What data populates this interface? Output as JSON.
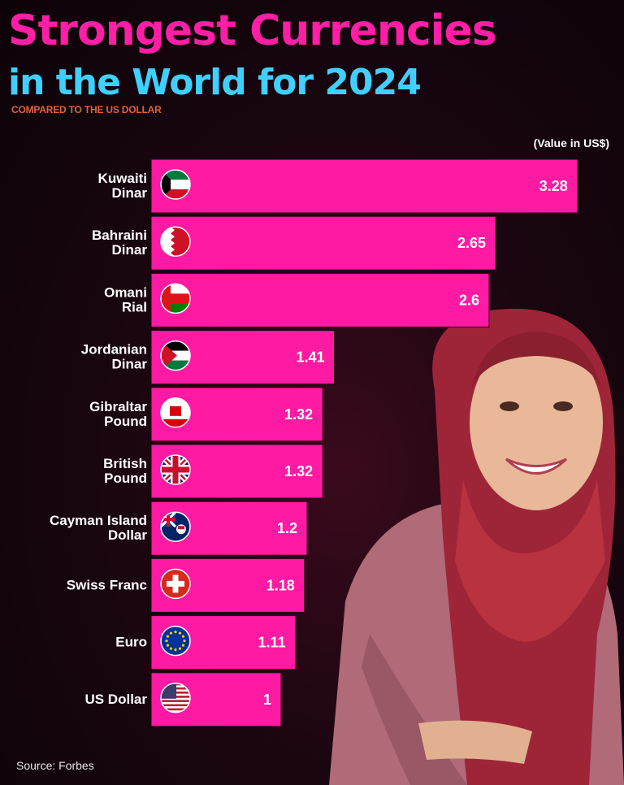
{
  "header": {
    "title_line1": "Strongest Currencies",
    "title_line2": "in the World for 2024",
    "subtitle": "COMPARED TO THE US DOLLAR",
    "unit_note": "(Value in US$)"
  },
  "footer": {
    "source": "Source: Forbes"
  },
  "chart_data": {
    "type": "bar",
    "orientation": "horizontal",
    "title": "Strongest Currencies in the World for 2024",
    "subtitle": "COMPARED TO THE US DOLLAR",
    "unit": "(Value in US$)",
    "categories": [
      [
        "Kuwaiti",
        "Dinar"
      ],
      [
        "Bahraini",
        "Dinar"
      ],
      [
        "Omani",
        "Rial"
      ],
      [
        "Jordanian",
        "Dinar"
      ],
      [
        "Gibraltar",
        "Pound"
      ],
      [
        "British",
        "Pound"
      ],
      [
        "Cayman Island",
        "Dollar"
      ],
      [
        "Swiss Franc"
      ],
      [
        "Euro"
      ],
      [
        "US Dollar"
      ]
    ],
    "values": [
      3.28,
      2.65,
      2.6,
      1.41,
      1.32,
      1.32,
      1.2,
      1.18,
      1.11,
      1
    ],
    "value_labels": [
      "3.28",
      "2.65",
      "2.6",
      "1.41",
      "1.32",
      "1.32",
      "1.2",
      "1.18",
      "1.11",
      "1"
    ],
    "flag_icons": [
      "kuwait-flag-icon",
      "bahrain-flag-icon",
      "oman-flag-icon",
      "jordan-flag-icon",
      "gibraltar-flag-icon",
      "uk-flag-icon",
      "cayman-islands-flag-icon",
      "switzerland-flag-icon",
      "eu-flag-icon",
      "usa-flag-icon"
    ],
    "bar_color": "#ff1aa3",
    "grid": false,
    "legend": "none"
  },
  "colors": {
    "title_pink": "#ff1ea6",
    "title_blue": "#3fd0ff",
    "subtitle_orange": "#e0613a"
  }
}
